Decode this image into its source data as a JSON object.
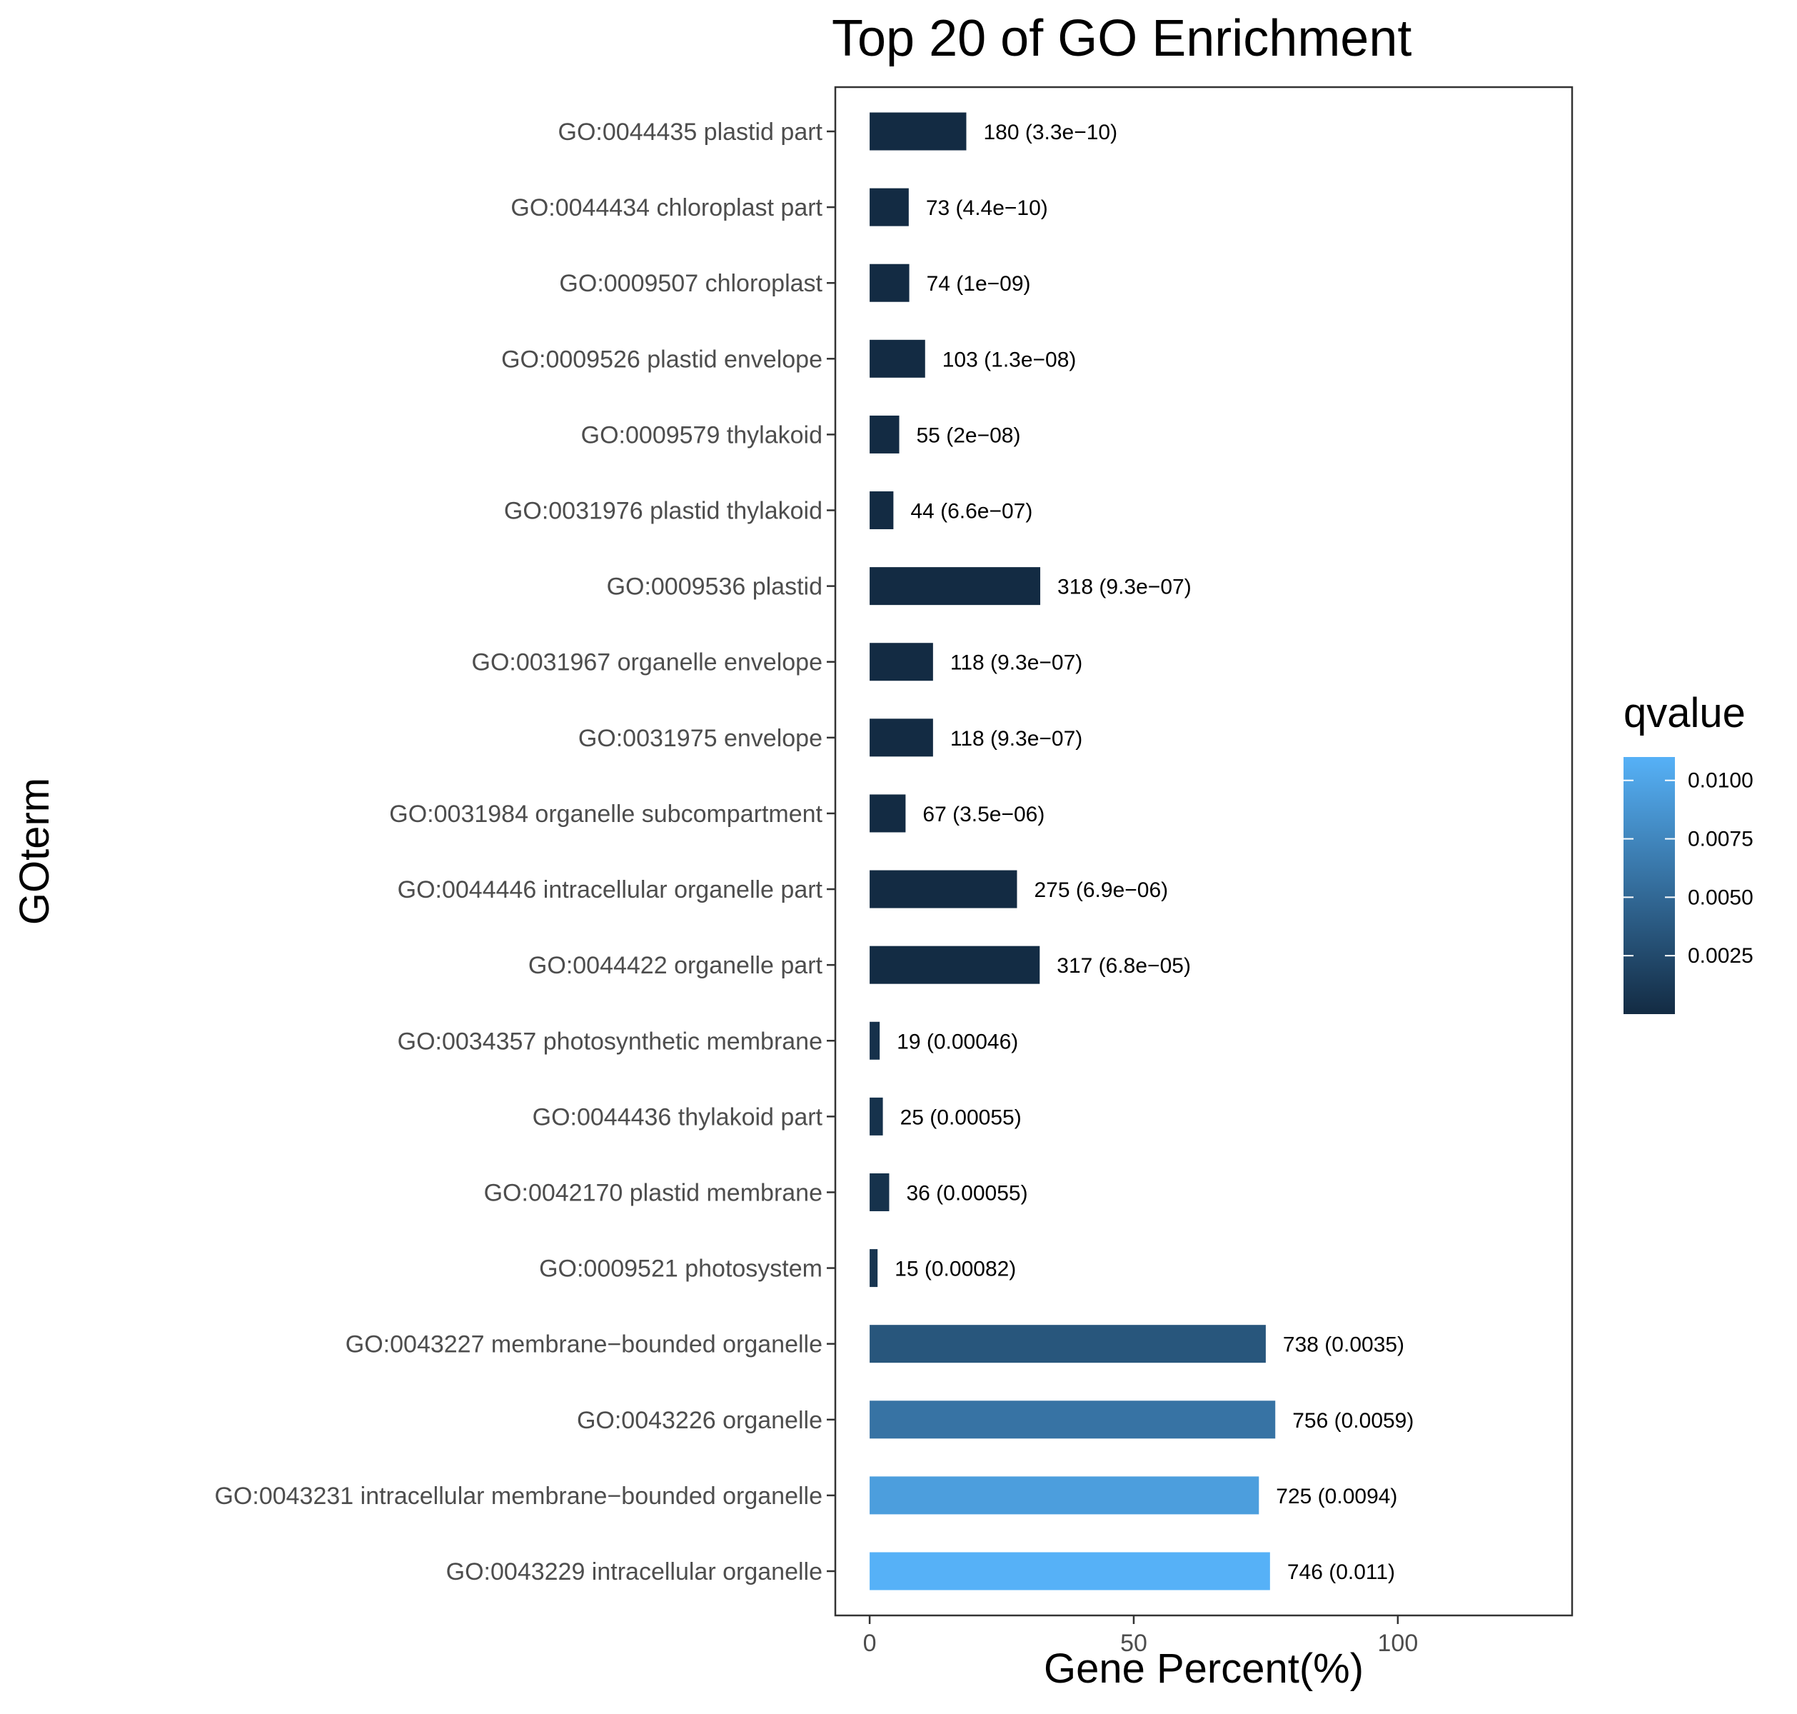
{
  "chart_data": {
    "type": "bar",
    "orientation": "horizontal",
    "title": "Top 20 of GO Enrichment",
    "xlabel": "Gene Percent(%)",
    "ylabel": "GOterm",
    "xlim": [
      -6.5,
      133
    ],
    "xticks": [
      0,
      50,
      100
    ],
    "grid": false,
    "legend": {
      "title": "qvalue",
      "position": "right",
      "type": "colorbar",
      "ticks": [
        0.0025,
        0.005,
        0.0075,
        0.01
      ],
      "tick_labels": [
        "0.0025",
        "0.0050",
        "0.0075",
        "0.0100"
      ],
      "range": [
        3.3e-10,
        0.011
      ],
      "color_low": "#132B43",
      "color_high": "#56B1F7"
    },
    "categories": [
      "GO:0044435 plastid part",
      "GO:0044434 chloroplast part",
      "GO:0009507 chloroplast",
      "GO:0009526 plastid envelope",
      "GO:0009579 thylakoid",
      "GO:0031976 plastid thylakoid",
      "GO:0009536 plastid",
      "GO:0031967 organelle envelope",
      "GO:0031975 envelope",
      "GO:0031984 organelle subcompartment",
      "GO:0044446 intracellular organelle part",
      "GO:0044422 organelle part",
      "GO:0034357 photosynthetic membrane",
      "GO:0044436 thylakoid part",
      "GO:0042170 plastid membrane",
      "GO:0009521 photosystem",
      "GO:0043227 membrane−bounded organelle",
      "GO:0043226 organelle",
      "GO:0043231 intracellular membrane−bounded organelle",
      "GO:0043229 intracellular organelle"
    ],
    "values": [
      18.3,
      7.4,
      7.5,
      10.5,
      5.6,
      4.5,
      32.3,
      12.0,
      12.0,
      6.8,
      27.9,
      32.2,
      1.9,
      2.5,
      3.7,
      1.5,
      75.0,
      76.8,
      73.7,
      75.8
    ],
    "qvalues": [
      3.3e-10,
      4.4e-10,
      1e-09,
      1.3e-08,
      2e-08,
      6.6e-07,
      9.3e-07,
      9.3e-07,
      9.3e-07,
      3.5e-06,
      6.9e-06,
      6.8e-05,
      0.00046,
      0.00055,
      0.00055,
      0.00082,
      0.0035,
      0.0059,
      0.0094,
      0.011
    ],
    "data_labels": [
      "180 (3.3e−10)",
      "73 (4.4e−10)",
      "74 (1e−09)",
      "103 (1.3e−08)",
      "55 (2e−08)",
      "44 (6.6e−07)",
      "318 (9.3e−07)",
      "118 (9.3e−07)",
      "118 (9.3e−07)",
      "67 (3.5e−06)",
      "275 (6.9e−06)",
      "317 (6.8e−05)",
      "19 (0.00046)",
      "25 (0.00055)",
      "36 (0.00055)",
      "15 (0.00082)",
      "738 (0.0035)",
      "756 (0.0059)",
      "725 (0.0094)",
      "746 (0.011)"
    ]
  }
}
